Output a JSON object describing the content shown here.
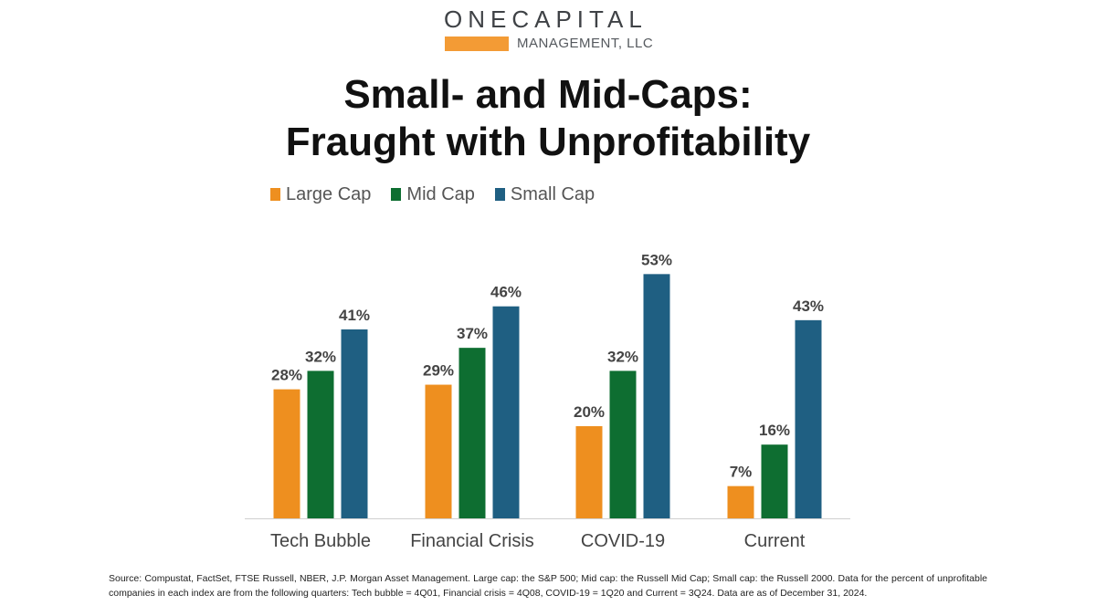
{
  "logo": {
    "top_text": "ONECAPITAL",
    "bottom_text": "MANAGEMENT, LLC",
    "bar_color": "#F39B35"
  },
  "title": {
    "line1": "Small- and Mid-Caps:",
    "line2": "Fraught with Unprofitability"
  },
  "chart_data": {
    "type": "bar",
    "categories": [
      "Tech Bubble",
      "Financial Crisis",
      "COVID-19",
      "Current"
    ],
    "series": [
      {
        "name": "Large Cap",
        "color": "#EE8F1F",
        "values": [
          28,
          29,
          20,
          7
        ],
        "labels": [
          "28%",
          "29%",
          "20%",
          "7%"
        ]
      },
      {
        "name": "Mid Cap",
        "color": "#0E6E31",
        "values": [
          32,
          37,
          32,
          16
        ],
        "labels": [
          "32%",
          "37%",
          "32%",
          "16%"
        ]
      },
      {
        "name": "Small Cap",
        "color": "#1F5F82",
        "values": [
          41,
          46,
          53,
          43
        ],
        "labels": [
          "41%",
          "46%",
          "53%",
          "43%"
        ]
      }
    ],
    "ylim": [
      0,
      60
    ],
    "grid": false,
    "legend_position": "top-left",
    "xlabel": "",
    "ylabel": ""
  },
  "source": "Source: Compustat, FactSet, FTSE Russell, NBER, J.P. Morgan Asset Management.  Large cap: the S&P 500; Mid cap: the Russell Mid Cap; Small cap: the Russell 2000. Data for the percent of unprofitable companies in each index are from the following quarters: Tech bubble = 4Q01, Financial crisis = 4Q08, COVID-19 = 1Q20 and Current = 3Q24.  Data are as of December 31, 2024."
}
